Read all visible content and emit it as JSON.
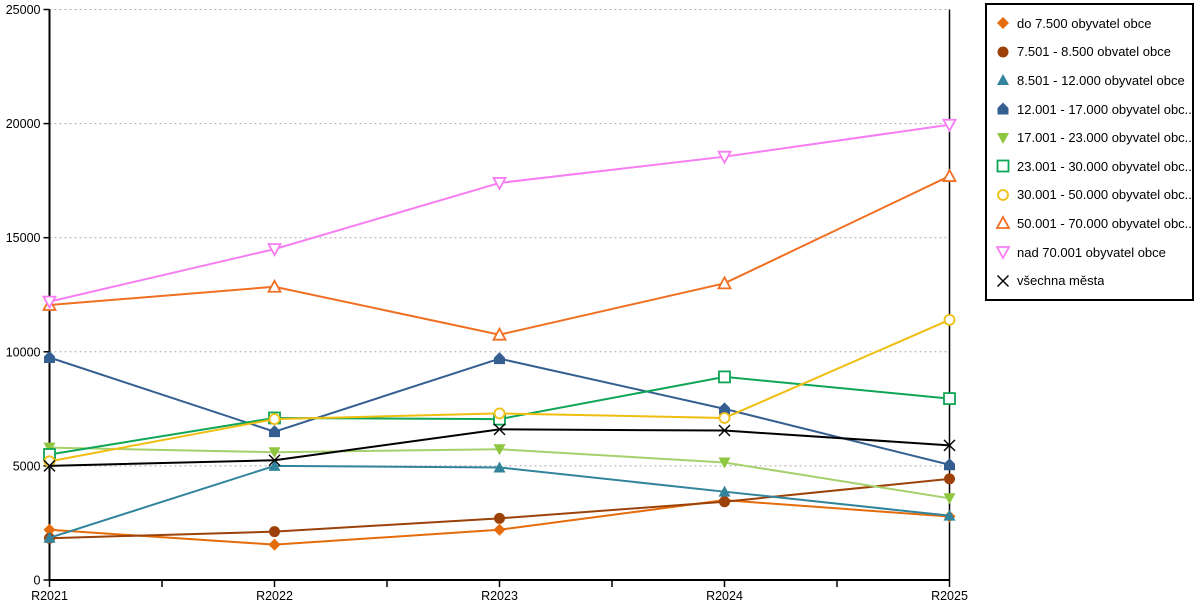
{
  "chart_data": {
    "type": "line",
    "categories": [
      "R2021",
      "R2022",
      "R2023",
      "R2024",
      "R2025"
    ],
    "y_ticks": [
      0,
      5000,
      10000,
      15000,
      20000,
      25000
    ],
    "ylim": [
      0,
      25000
    ],
    "grid": "horizontal-dotted",
    "grid_color": "#aaaaaa",
    "axis_color": "#000000",
    "legend_position": "top-right",
    "series": [
      {
        "name": "do 7.500 obyvatel obce",
        "marker": "diamond",
        "color": "#e46c0a",
        "values": [
          2200,
          1550,
          2200,
          3500,
          2780
        ]
      },
      {
        "name": "7.501 - 8.500 obvatel obce",
        "marker": "circle",
        "color": "#9c4108",
        "values": [
          1830,
          2120,
          2700,
          3430,
          4430
        ]
      },
      {
        "name": "8.501 - 12.000 obyvatel obce",
        "marker": "triangle-up",
        "color": "#31849b",
        "values": [
          1850,
          5000,
          4930,
          3870,
          2820
        ]
      },
      {
        "name": "12.001 - 17.000 obyvatel obc...",
        "marker": "pentagon",
        "color": "#365f91",
        "values": [
          9750,
          6500,
          9700,
          7500,
          5050
        ]
      },
      {
        "name": "17.001 - 23.000 obyvatel obc...",
        "marker": "triangle-down",
        "color": "#8ec63f",
        "line_color": "#a5d16c",
        "values": [
          5800,
          5600,
          5730,
          5150,
          3580
        ]
      },
      {
        "name": "23.001 - 30.000 obyvatel obc...",
        "marker": "square-open",
        "color": "#0ea656",
        "values": [
          5500,
          7100,
          7050,
          8900,
          7950
        ]
      },
      {
        "name": "30.001 - 50.000 obyvatel obc...",
        "marker": "circle-open",
        "color": "#f0be10",
        "values": [
          5200,
          7050,
          7300,
          7100,
          11400
        ]
      },
      {
        "name": "50.001 - 70.000 obyvatel obc...",
        "marker": "triangle-open",
        "color": "#f06f22",
        "values": [
          12050,
          12850,
          10750,
          13000,
          17700
        ]
      },
      {
        "name": "nad 70.001 obyvatel obce",
        "marker": "triangle-down-open",
        "color": "#f87df2",
        "values": [
          12200,
          14500,
          17400,
          18550,
          19950
        ]
      },
      {
        "name": "všechna města",
        "marker": "x",
        "color": "#000000",
        "values": [
          5000,
          5250,
          6600,
          6550,
          5900
        ]
      }
    ]
  }
}
